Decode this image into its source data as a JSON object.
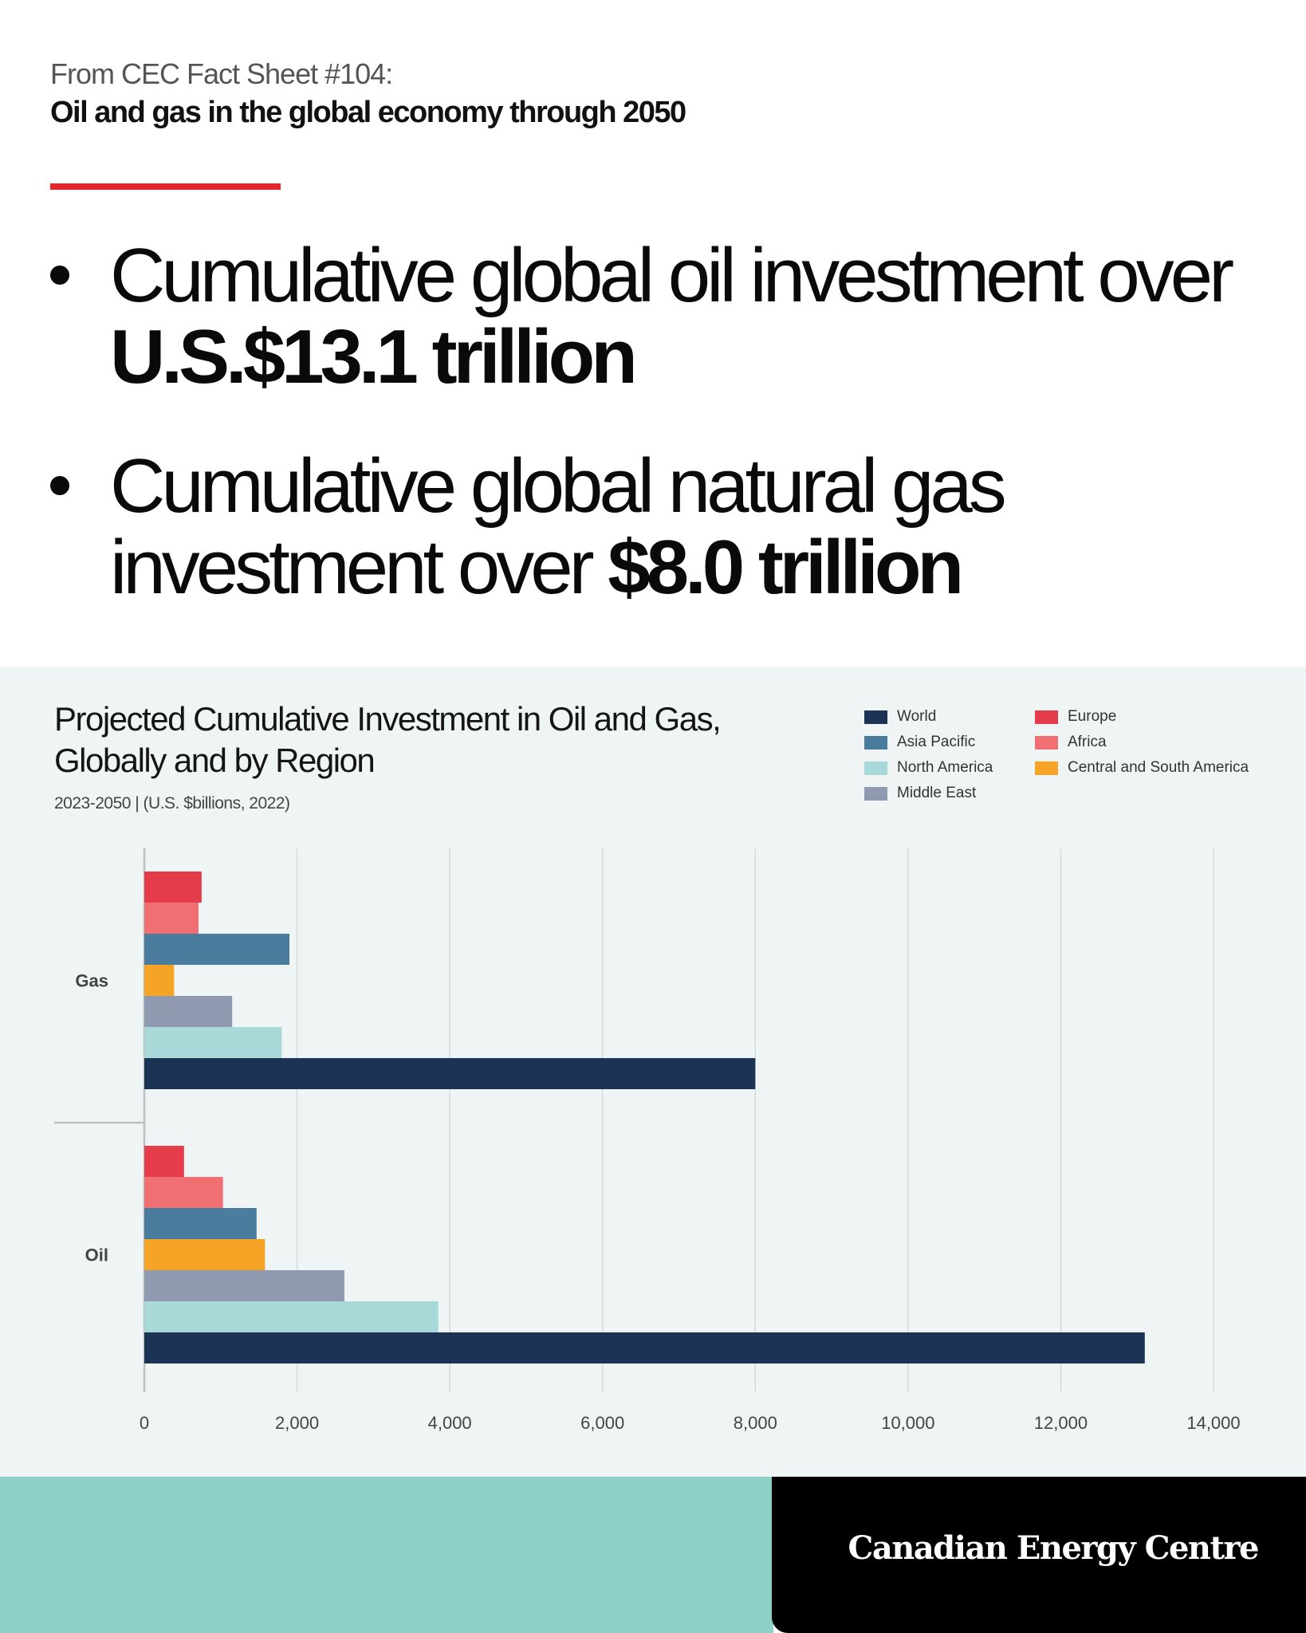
{
  "header": {
    "kicker": "From CEC Fact Sheet #104:",
    "subtitle": "Oil and gas in the global economy through 2050"
  },
  "bullets": [
    {
      "text": "Cumulative global oil investment over ",
      "emphasis": "U.S.$13.1 trillion"
    },
    {
      "text": "Cumulative global natural gas investment over ",
      "emphasis": "$8.0 trillion"
    }
  ],
  "chart_data": {
    "type": "bar",
    "orientation": "horizontal",
    "title": "Projected Cumulative Investment in Oil and Gas, Globally and by Region",
    "subtitle": "2023-2050 | (U.S. $billions, 2022)",
    "categories": [
      "Gas",
      "Oil"
    ],
    "xlim": [
      0,
      14000
    ],
    "xticks": [
      0,
      2000,
      4000,
      6000,
      8000,
      10000,
      12000,
      14000
    ],
    "xtick_labels": [
      "0",
      "2,000",
      "4,000",
      "6,000",
      "8,000",
      "10,000",
      "12,000",
      "14,000"
    ],
    "grid": true,
    "legend_position": "top-right",
    "bar_order_top_to_bottom": [
      "Europe",
      "Africa",
      "Asia Pacific",
      "Central and South America",
      "Middle East",
      "North America",
      "World"
    ],
    "series": [
      {
        "name": "World",
        "color": "#1c3356",
        "values": [
          8000,
          13100
        ]
      },
      {
        "name": "Asia Pacific",
        "color": "#4a7c9d",
        "values": [
          1900,
          1470
        ]
      },
      {
        "name": "North America",
        "color": "#a8d9d8",
        "values": [
          1800,
          3850
        ]
      },
      {
        "name": "Middle East",
        "color": "#8f9ab0",
        "values": [
          1150,
          2620
        ]
      },
      {
        "name": "Europe",
        "color": "#e53c4c",
        "values": [
          750,
          520
        ]
      },
      {
        "name": "Africa",
        "color": "#f06f72",
        "values": [
          710,
          1030
        ]
      },
      {
        "name": "Central and South America",
        "color": "#f5a425",
        "values": [
          390,
          1580
        ]
      }
    ]
  },
  "footer": {
    "brand": "Canadian Energy Centre"
  }
}
